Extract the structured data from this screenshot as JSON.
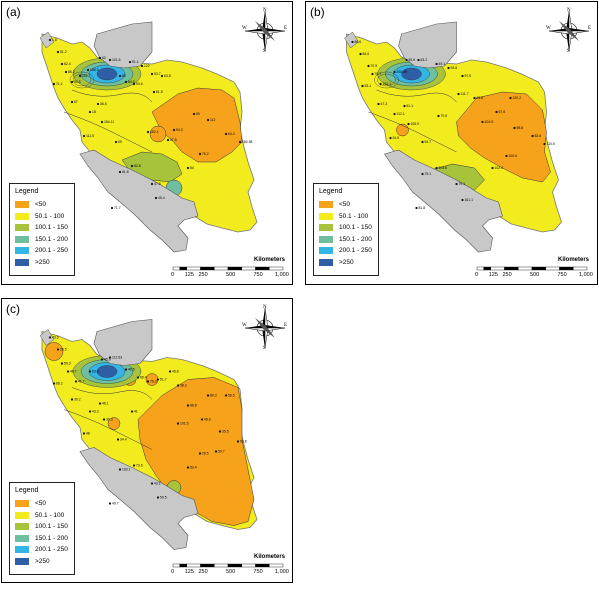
{
  "panels": [
    {
      "label": "(a)",
      "stations": [
        "1.8",
        "51.2",
        "62.4",
        "86.2",
        "71.1",
        "90.5",
        "101",
        "156.3",
        "62",
        "101.6",
        "80",
        "84.5",
        "93.6",
        "91.1",
        "122",
        "53.7",
        "63.8",
        "61.8",
        "152.4",
        "67.8",
        "94.3",
        "59",
        "112",
        "64.3",
        "180.98",
        "75.2",
        "54",
        "45.4",
        "47.8",
        "82.8",
        "61.8",
        "71.7",
        "18",
        "36.5",
        "111.5",
        "154.11",
        "69",
        "67"
      ]
    },
    {
      "label": "(b)",
      "stations": [
        "86.6",
        "84.6",
        "70.9",
        "76.7",
        "53.1",
        "104.1",
        "200.45",
        "59.6",
        "63.2",
        "49.1",
        "93.8",
        "97.5",
        "111.7",
        "83.8",
        "67.8",
        "98.8",
        "52.6",
        "110.5",
        "100.6",
        "102.4",
        "161.1",
        "79.1",
        "104.6",
        "75.1",
        "81.8",
        "112.1",
        "61.1",
        "24.5",
        "105.9",
        "54.7",
        "47.3",
        "79.8",
        "104.5",
        "120.2"
      ]
    },
    {
      "label": "(c)",
      "stations": [
        "43.5",
        "26.5",
        "59.3",
        "46.7",
        "66.2",
        "41.7",
        "63.8",
        "45.6",
        "112.63",
        "49.5",
        "69.4",
        "76.3",
        "51.7",
        "46.8",
        "38.3",
        "86.8",
        "46.6",
        "35.5",
        "93.8",
        "26.5",
        "53.4",
        "50.5",
        "43.1",
        "73.6",
        "103.1",
        "49.7",
        "43.3",
        "46.1",
        "48",
        "30.3",
        "34.4",
        "39.2",
        "41",
        "101.5",
        "80.3",
        "56.5",
        "50.7"
      ]
    }
  ],
  "legend": {
    "title": "Legend",
    "items": [
      {
        "label": "<50",
        "color": "#f7a21b"
      },
      {
        "label": "50.1 - 100",
        "color": "#f2ec1e"
      },
      {
        "label": "100.1 - 150",
        "color": "#a6c33b"
      },
      {
        "label": "150.1 - 200",
        "color": "#6dbf9f"
      },
      {
        "label": "200.1 - 250",
        "color": "#33b6e6"
      },
      {
        "label": ">250",
        "color": "#2d5ea6"
      }
    ]
  },
  "scalebar": {
    "title": "Kilometers",
    "ticks": [
      "0",
      "125",
      "250",
      "500",
      "750",
      "1,000"
    ]
  },
  "north_arrow": {
    "n": "N",
    "s": "S",
    "e": "E",
    "w": "W"
  },
  "colors": {
    "grey_land": "#c8c8c8",
    "water": "#e8e8e8"
  }
}
